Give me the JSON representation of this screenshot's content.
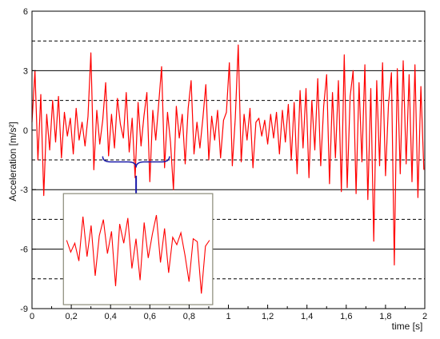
{
  "chart_data": {
    "type": "line",
    "title": "",
    "xlabel": "time [s]",
    "ylabel": "Acceleration [m/s²]",
    "xlim": [
      0,
      2.0
    ],
    "ylim": [
      -9,
      6
    ],
    "x_ticks": [
      0,
      0.2,
      0.4,
      0.6,
      0.8,
      1,
      1.2,
      1.4,
      1.6,
      1.8,
      2
    ],
    "x_tick_labels": [
      "0",
      "0,2",
      "0,4",
      "0,6",
      "0,8",
      "1",
      "1,2",
      "1,4",
      "1,6",
      "1,8",
      "2"
    ],
    "y_ticks": [
      -9,
      -6,
      -3,
      0,
      3,
      6
    ],
    "y_tick_labels": [
      "-9",
      "-6",
      "-3",
      "0",
      "3",
      "6"
    ],
    "solid_gridlines_y": [
      -6,
      -3,
      3
    ],
    "dashed_gridlines_y": [
      -7.5,
      -4.5,
      -1.5,
      1.5,
      4.5
    ],
    "legend": "none",
    "series": [
      {
        "color": "#ff0000",
        "x": [
          0.0,
          0.015,
          0.03,
          0.045,
          0.06,
          0.075,
          0.09,
          0.105,
          0.12,
          0.135,
          0.15,
          0.165,
          0.18,
          0.195,
          0.21,
          0.225,
          0.24,
          0.255,
          0.27,
          0.285,
          0.3,
          0.315,
          0.33,
          0.345,
          0.36,
          0.375,
          0.39,
          0.405,
          0.42,
          0.435,
          0.45,
          0.465,
          0.48,
          0.495,
          0.51,
          0.525,
          0.54,
          0.555,
          0.57,
          0.585,
          0.6,
          0.615,
          0.63,
          0.645,
          0.66,
          0.675,
          0.69,
          0.705,
          0.72,
          0.735,
          0.75,
          0.765,
          0.78,
          0.795,
          0.81,
          0.825,
          0.84,
          0.855,
          0.87,
          0.885,
          0.9,
          0.915,
          0.93,
          0.945,
          0.96,
          0.975,
          0.99,
          1.005,
          1.02,
          1.035,
          1.05,
          1.065,
          1.08,
          1.095,
          1.11,
          1.125,
          1.14,
          1.155,
          1.17,
          1.185,
          1.2,
          1.215,
          1.23,
          1.245,
          1.26,
          1.275,
          1.29,
          1.305,
          1.32,
          1.335,
          1.35,
          1.365,
          1.38,
          1.395,
          1.41,
          1.425,
          1.44,
          1.455,
          1.47,
          1.485,
          1.5,
          1.515,
          1.53,
          1.545,
          1.56,
          1.575,
          1.59,
          1.605,
          1.62,
          1.635,
          1.65,
          1.665,
          1.68,
          1.695,
          1.71,
          1.725,
          1.74,
          1.755,
          1.77,
          1.785,
          1.8,
          1.815,
          1.83,
          1.845,
          1.86,
          1.875,
          1.89,
          1.905,
          1.92,
          1.935,
          1.95,
          1.965,
          1.98,
          1.995
        ],
        "y": [
          0.4,
          3.0,
          -1.5,
          1.8,
          -3.3,
          0.8,
          -1.0,
          1.5,
          -0.6,
          1.7,
          -1.4,
          0.9,
          -0.3,
          0.6,
          -1.2,
          1.1,
          -0.5,
          0.4,
          -0.8,
          0.7,
          3.9,
          -2.0,
          1.0,
          -0.7,
          0.5,
          2.4,
          -1.3,
          0.8,
          -0.9,
          1.6,
          0.3,
          -0.4,
          1.9,
          -1.1,
          0.6,
          -2.4,
          1.4,
          -0.8,
          0.7,
          1.9,
          -2.6,
          1.0,
          -0.5,
          1.3,
          3.2,
          -1.9,
          0.9,
          -0.6,
          -3.0,
          1.2,
          -0.4,
          0.8,
          -1.7,
          1.1,
          2.5,
          -1.2,
          0.4,
          -0.9,
          0.6,
          2.3,
          -1.5,
          0.7,
          -0.5,
          1.0,
          -1.4,
          0.5,
          0.9,
          3.4,
          -1.8,
          0.6,
          4.3,
          -1.6,
          0.8,
          -0.5,
          1.1,
          -1.9,
          0.4,
          0.6,
          -0.3,
          0.5,
          -0.7,
          0.8,
          -0.4,
          0.9,
          -1.2,
          1.0,
          -0.6,
          1.3,
          -1.5,
          1.4,
          -2.2,
          2.0,
          -0.9,
          2.1,
          -2.4,
          1.5,
          -1.0,
          2.6,
          -1.8,
          1.2,
          2.8,
          -2.7,
          1.9,
          -1.4,
          2.5,
          -3.1,
          3.8,
          -2.9,
          1.7,
          3.0,
          -3.2,
          2.4,
          -1.6,
          3.3,
          -3.5,
          2.1,
          -5.6,
          2.5,
          -1.8,
          3.4,
          -2.3,
          1.3,
          2.9,
          -6.8,
          3.1,
          -2.2,
          3.5,
          -1.7,
          2.8,
          -2.6,
          3.3,
          -3.4,
          2.2,
          -2.0
        ]
      }
    ],
    "annotations": [
      {
        "type": "brace",
        "x_range": [
          0.36,
          0.7
        ],
        "y": -1.6,
        "color": "#1a1aaa"
      },
      {
        "type": "arrow",
        "from": [
          0.53,
          -2.3
        ],
        "to": [
          0.53,
          -3.8
        ],
        "color": "#1a1aaa"
      },
      {
        "type": "inset",
        "x_range": [
          0.16,
          0.92
        ],
        "y_range": [
          -8.8,
          -3.2
        ],
        "border_color": "#8a8a78",
        "y": [
          0.6,
          -0.2,
          0.4,
          -0.8,
          2.2,
          -0.5,
          1.6,
          -1.8,
          0.9,
          2.0,
          -0.3,
          1.2,
          -2.5,
          1.7,
          0.4,
          2.1,
          -1.3,
          0.7,
          -2.1,
          1.8,
          -0.6,
          1.0,
          2.3,
          -0.9,
          1.4,
          -1.6,
          0.8,
          0.3,
          1.1,
          -0.4,
          -2.2,
          0.7,
          0.5,
          -3.0,
          0.2,
          0.6
        ]
      }
    ]
  }
}
